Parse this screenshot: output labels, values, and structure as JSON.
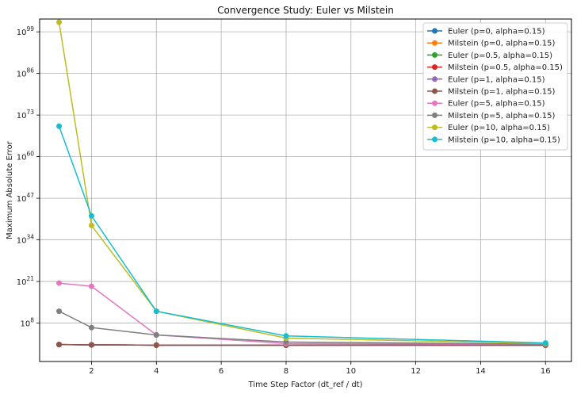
{
  "chart_data": {
    "type": "line",
    "title": "Convergence Study: Euler vs Milstein",
    "xlabel": "Time Step Factor (dt_ref / dt)",
    "ylabel": "Maximum Absolute Error",
    "yscale": "log",
    "xlim": [
      0.4,
      16.8
    ],
    "ylim_exp": [
      -4,
      103
    ],
    "xticks": [
      2,
      4,
      6,
      8,
      10,
      12,
      14,
      16
    ],
    "yticks_exp": [
      8,
      21,
      34,
      47,
      60,
      73,
      86,
      99
    ],
    "grid": true,
    "legend_position": "top-right",
    "series": [
      {
        "name": "Euler (p=0, alpha=0.15)",
        "color": "#1f77b4",
        "x": [
          1,
          2,
          4,
          8,
          16
        ],
        "y_exp": [
          1.3,
          1.2,
          1.1,
          1.1,
          1.1
        ]
      },
      {
        "name": "Milstein (p=0, alpha=0.15)",
        "color": "#ff7f0e",
        "x": [
          1,
          2,
          4,
          8,
          16
        ],
        "y_exp": [
          1.3,
          1.2,
          1.1,
          1.1,
          1.1
        ]
      },
      {
        "name": "Euler (p=0.5, alpha=0.15)",
        "color": "#2ca02c",
        "x": [
          1,
          2,
          4,
          8,
          16
        ],
        "y_exp": [
          1.3,
          1.2,
          1.1,
          1.1,
          1.1
        ]
      },
      {
        "name": "Milstein (p=0.5, alpha=0.15)",
        "color": "#d62728",
        "x": [
          1,
          2,
          4,
          8,
          16
        ],
        "y_exp": [
          1.3,
          1.2,
          1.1,
          1.1,
          1.1
        ]
      },
      {
        "name": "Euler (p=1, alpha=0.15)",
        "color": "#9467bd",
        "x": [
          1,
          2,
          4,
          8,
          16
        ],
        "y_exp": [
          1.3,
          1.2,
          1.1,
          1.1,
          1.1
        ]
      },
      {
        "name": "Milstein (p=1, alpha=0.15)",
        "color": "#8c564b",
        "x": [
          1,
          2,
          4,
          8,
          16
        ],
        "y_exp": [
          1.3,
          1.2,
          1.1,
          1.1,
          1.1
        ]
      },
      {
        "name": "Euler (p=5, alpha=0.15)",
        "color": "#e377c2",
        "x": [
          1,
          2,
          4,
          8,
          16
        ],
        "y_exp": [
          20.5,
          19.5,
          4.3,
          1.6,
          1.4
        ]
      },
      {
        "name": "Milstein (p=5, alpha=0.15)",
        "color": "#7f7f7f",
        "x": [
          1,
          2,
          4,
          8,
          16
        ],
        "y_exp": [
          11.7,
          6.6,
          4.3,
          2.1,
          1.4
        ]
      },
      {
        "name": "Euler (p=10, alpha=0.15)",
        "color": "#bcbd22",
        "x": [
          1,
          2,
          4,
          8,
          16
        ],
        "y_exp": [
          102,
          38.5,
          11.7,
          3.3,
          1.6
        ]
      },
      {
        "name": "Milstein (p=10, alpha=0.15)",
        "color": "#17becf",
        "x": [
          1,
          2,
          4,
          8,
          16
        ],
        "y_exp": [
          69.5,
          41.5,
          11.7,
          4.0,
          1.8
        ]
      }
    ]
  }
}
